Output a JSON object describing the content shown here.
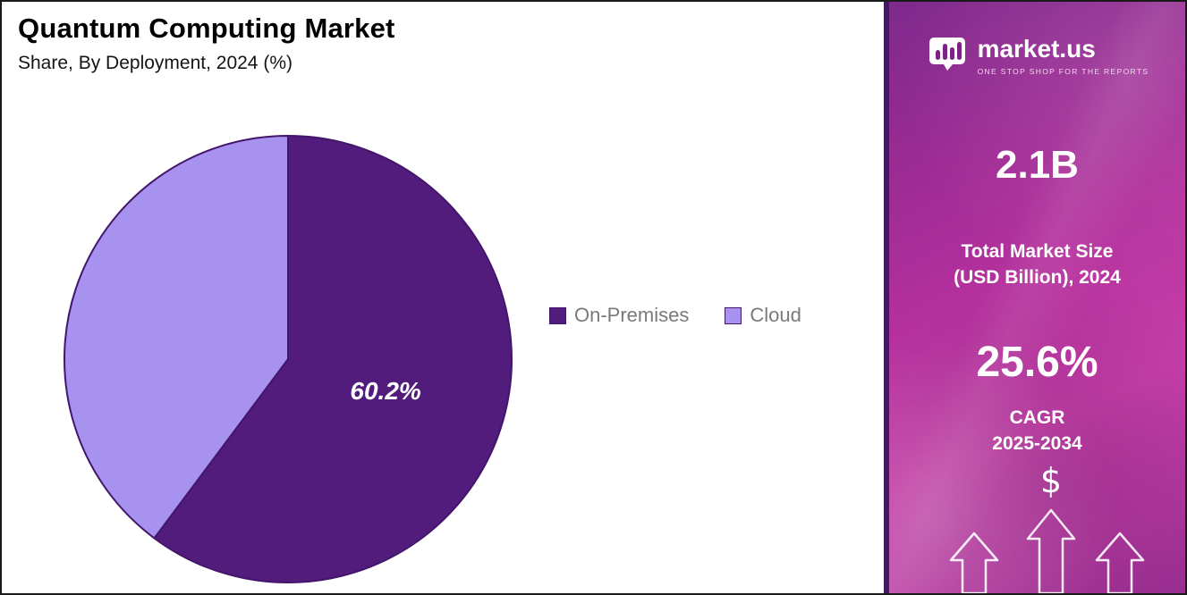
{
  "chart_data": {
    "type": "pie",
    "title": "Quantum Computing Market",
    "subtitle": "Share, By Deployment, 2024 (%)",
    "slices": [
      {
        "label": "On-Premises",
        "value": 60.2,
        "color": "#521c7d",
        "data_label": "60.2%"
      },
      {
        "label": "Cloud",
        "value": 39.8,
        "color": "#a792ef",
        "data_label": ""
      }
    ],
    "stroke_color": "#43156b",
    "start_angle_deg": 0,
    "direction": "clockwise",
    "legend_position": "right",
    "data_label_color": "#ffffff",
    "data_label_style": "bold italic"
  },
  "sidebar": {
    "logo": {
      "text": "market.us",
      "tagline": "ONE STOP SHOP FOR THE REPORTS"
    },
    "stats": [
      {
        "value": "2.1B",
        "label_lines": [
          "Total Market Size",
          "(USD Billion), 2024"
        ]
      },
      {
        "value": "25.6%",
        "label_lines": [
          "CAGR",
          "2025-2034"
        ]
      }
    ],
    "dollar_symbol": "$"
  }
}
